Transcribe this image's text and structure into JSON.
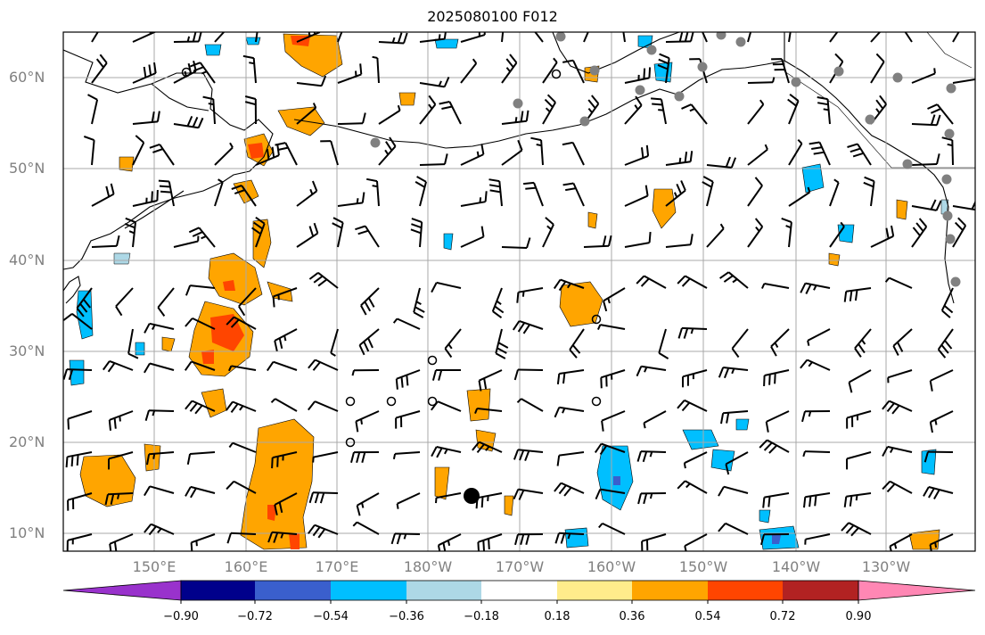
{
  "title": "2025080100 F012",
  "lat_labels": [
    "60°N",
    "50°N",
    "40°N",
    "30°N",
    "20°N",
    "10°N"
  ],
  "lon_labels": [
    "150°E",
    "160°E",
    "170°E",
    "180°W",
    "170°W",
    "160°W",
    "150°W",
    "140°W",
    "130°W"
  ],
  "colorbar": {
    "ticks": [
      "−0.90",
      "−0.72",
      "−0.54",
      "−0.36",
      "−0.18",
      "0.18",
      "0.36",
      "0.54",
      "0.72",
      "0.90"
    ],
    "colors": [
      "#9932cc",
      "#00008b",
      "#3a5fcd",
      "#00bfff",
      "#add8e6",
      "#ffffff",
      "#ffec8b",
      "#ffa500",
      "#ff4500",
      "#b22222",
      "#ff87b4"
    ]
  },
  "colors": {
    "grid": "#a9a9a9",
    "coast": "#000000",
    "station": "#808080",
    "barb": "#000000"
  }
}
